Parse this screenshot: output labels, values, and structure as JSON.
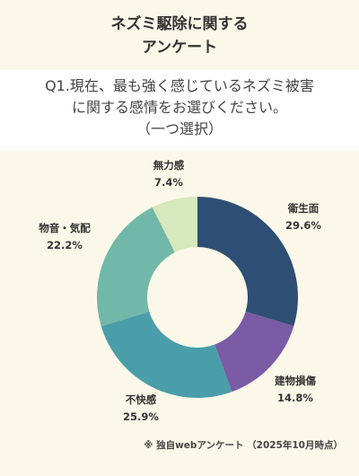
{
  "header": {
    "title_line1": "ネズミ駆除に関する",
    "title_line2": "アンケート",
    "question_line1": "Q1.現在、最も強く感じているネズミ被害",
    "question_line2": "に関する感情をお選びください。",
    "question_line3": "（一つ選択）"
  },
  "chart_data": {
    "type": "pie",
    "donut": true,
    "title": "",
    "categories": [
      "衛生面",
      "建物損傷",
      "不快感",
      "物音・気配",
      "無力感"
    ],
    "values": [
      29.6,
      14.8,
      25.9,
      22.2,
      7.4
    ],
    "value_labels": [
      "29.6%",
      "14.8%",
      "25.9%",
      "22.2%",
      "7.4%"
    ],
    "display_labels": [
      "衛生面",
      "建物損傷",
      "不快感",
      "物音・気配",
      "無力感"
    ],
    "colors": [
      "#2e4f73",
      "#7b5aa6",
      "#4a9eaa",
      "#72b8a8",
      "#d6e8bd"
    ],
    "start_angle": "12 o'clock",
    "direction": "clockwise"
  },
  "footnote": "※ 独自webアンケート （2025年10月時点）"
}
